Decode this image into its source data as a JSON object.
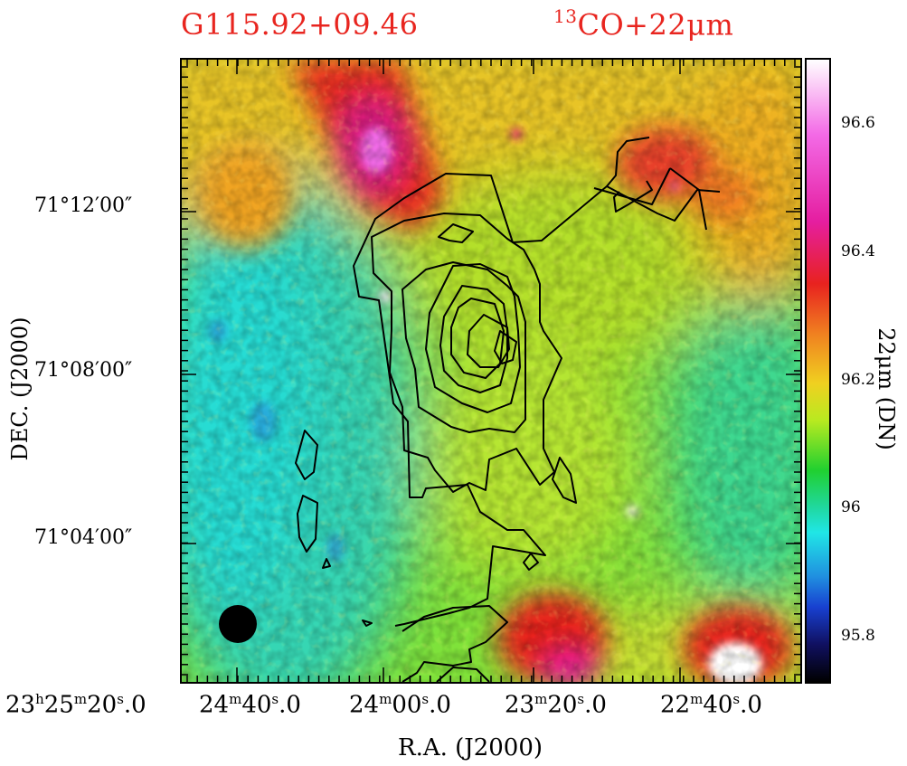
{
  "chart_data": {
    "type": "heatmap",
    "title_left": "G115.92+09.46",
    "title_right_iso": "13",
    "title_right_rest": "CO+22μm",
    "xlabel": "R.A.  (J2000)",
    "ylabel": "DEC.  (J2000)",
    "colorbar_label": "22μm (DN)",
    "colorbar_ticks": [
      "95.8",
      "96",
      "96.2",
      "96.4",
      "96.6"
    ],
    "colorbar_range": [
      95.73,
      96.7
    ],
    "colormap": [
      "#000000",
      "#101060",
      "#1840d0",
      "#2090e0",
      "#20e6e6",
      "#20d8a0",
      "#20d030",
      "#b8ea20",
      "#f0d020",
      "#f08020",
      "#e8221f",
      "#e51ea0",
      "#f36ae6",
      "#ffffff"
    ],
    "x_ticks": [
      {
        "h": "23",
        "m": "25",
        "s": "20",
        "f": "0"
      },
      {
        "h": "",
        "m": "24",
        "s": "40",
        "f": "0"
      },
      {
        "h": "",
        "m": "24",
        "s": "00",
        "f": "0"
      },
      {
        "h": "",
        "m": "23",
        "s": "20",
        "f": "0"
      },
      {
        "h": "",
        "m": "22",
        "s": "40",
        "f": "0"
      }
    ],
    "y_ticks": [
      "71°12′00″",
      "71°08′00″",
      "71°04′00″"
    ],
    "contour_line_color": "#000000",
    "beam_marker": "black-filled-circle"
  }
}
